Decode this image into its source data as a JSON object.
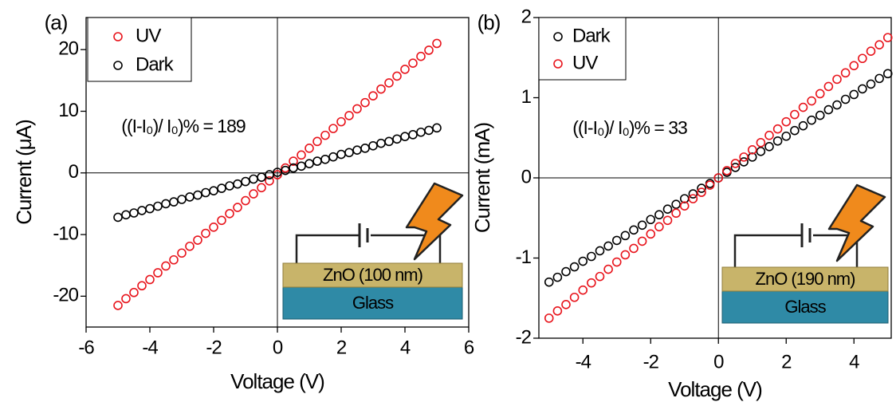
{
  "chart_data": [
    {
      "type": "scatter",
      "panel_label": "(a)",
      "xlabel": "Voltage (V)",
      "ylabel": "Current (μA)",
      "annotation": "((I-I₀)/ I₀)% = 189",
      "inset": {
        "layer": "ZnO (100 nm)",
        "substrate": "Glass"
      },
      "x": [
        -5,
        -4.75,
        -4.5,
        -4.25,
        -4,
        -3.75,
        -3.5,
        -3.25,
        -3,
        -2.75,
        -2.5,
        -2.25,
        -2,
        -1.75,
        -1.5,
        -1.25,
        -1,
        -0.75,
        -0.5,
        -0.25,
        0,
        0.25,
        0.5,
        0.75,
        1,
        1.25,
        1.5,
        1.75,
        2,
        2.25,
        2.5,
        2.75,
        3,
        3.25,
        3.5,
        3.75,
        4,
        4.25,
        4.5,
        4.75,
        5
      ],
      "series": [
        {
          "name": "UV",
          "color": "#e8141c",
          "values": [
            -21.5,
            -20.4,
            -19.4,
            -18.3,
            -17.3,
            -16.2,
            -15.1,
            -14.1,
            -13,
            -11.9,
            -10.9,
            -9.8,
            -8.8,
            -7.7,
            -6.6,
            -5.6,
            -4.5,
            -3.4,
            -2.4,
            -1.3,
            -0.3,
            0.8,
            1.9,
            2.9,
            4,
            5.1,
            6.1,
            7.2,
            8.3,
            9.3,
            10.4,
            11.4,
            12.5,
            13.6,
            14.6,
            15.7,
            16.8,
            17.8,
            18.9,
            19.9,
            21
          ]
        },
        {
          "name": "Dark",
          "color": "#000000",
          "values": [
            -7.2,
            -6.8,
            -6.5,
            -6.1,
            -5.8,
            -5.4,
            -5,
            -4.7,
            -4.3,
            -3.9,
            -3.6,
            -3.2,
            -2.9,
            -2.5,
            -2.1,
            -1.8,
            -1.4,
            -1,
            -0.7,
            -0.3,
            0.1,
            0.4,
            0.8,
            1.1,
            1.5,
            1.9,
            2.2,
            2.6,
            3,
            3.3,
            3.7,
            4,
            4.4,
            4.8,
            5.1,
            5.5,
            5.9,
            6.2,
            6.6,
            6.9,
            7.3
          ]
        }
      ],
      "xlim": [
        -6,
        6
      ],
      "ylim": [
        -25,
        25.2
      ],
      "xticks": [
        -6,
        -4,
        -2,
        0,
        2,
        4,
        6
      ],
      "yticks": [
        -20,
        -10,
        0,
        10,
        20
      ]
    },
    {
      "type": "scatter",
      "panel_label": "(b)",
      "xlabel": "Voltage (V)",
      "ylabel": "Current (mA)",
      "annotation": "((I-I₀)/ I₀)% = 33",
      "inset": {
        "layer": "ZnO (190 nm)",
        "substrate": "Glass"
      },
      "x": [
        -5,
        -4.75,
        -4.5,
        -4.25,
        -4,
        -3.75,
        -3.5,
        -3.25,
        -3,
        -2.75,
        -2.5,
        -2.25,
        -2,
        -1.75,
        -1.5,
        -1.25,
        -1,
        -0.75,
        -0.5,
        -0.25,
        0,
        0.25,
        0.5,
        0.75,
        1,
        1.25,
        1.5,
        1.75,
        2,
        2.25,
        2.5,
        2.75,
        3,
        3.25,
        3.5,
        3.75,
        4,
        4.25,
        4.5,
        4.75,
        5
      ],
      "series": [
        {
          "name": "Dark",
          "color": "#000000",
          "values": [
            -1.3,
            -1.24,
            -1.17,
            -1.11,
            -1.04,
            -0.98,
            -0.91,
            -0.85,
            -0.78,
            -0.72,
            -0.65,
            -0.59,
            -0.52,
            -0.46,
            -0.39,
            -0.33,
            -0.26,
            -0.2,
            -0.13,
            -0.07,
            0,
            0.07,
            0.13,
            0.2,
            0.26,
            0.33,
            0.39,
            0.46,
            0.52,
            0.59,
            0.65,
            0.72,
            0.78,
            0.85,
            0.91,
            0.98,
            1.04,
            1.11,
            1.17,
            1.24,
            1.3
          ]
        },
        {
          "name": "UV",
          "color": "#e8141c",
          "values": [
            -1.75,
            -1.66,
            -1.58,
            -1.49,
            -1.4,
            -1.31,
            -1.23,
            -1.14,
            -1.05,
            -0.96,
            -0.88,
            -0.79,
            -0.7,
            -0.61,
            -0.53,
            -0.44,
            -0.35,
            -0.26,
            -0.18,
            -0.09,
            0,
            0.09,
            0.18,
            0.26,
            0.35,
            0.44,
            0.53,
            0.61,
            0.7,
            0.79,
            0.88,
            0.96,
            1.05,
            1.14,
            1.23,
            1.31,
            1.4,
            1.49,
            1.58,
            1.66,
            1.75
          ]
        }
      ],
      "xlim": [
        -5.3,
        5.1
      ],
      "ylim": [
        -2,
        2
      ],
      "xticks": [
        -4,
        -2,
        0,
        2,
        4
      ],
      "yticks": [
        -2,
        -1,
        0,
        1,
        2
      ]
    }
  ]
}
